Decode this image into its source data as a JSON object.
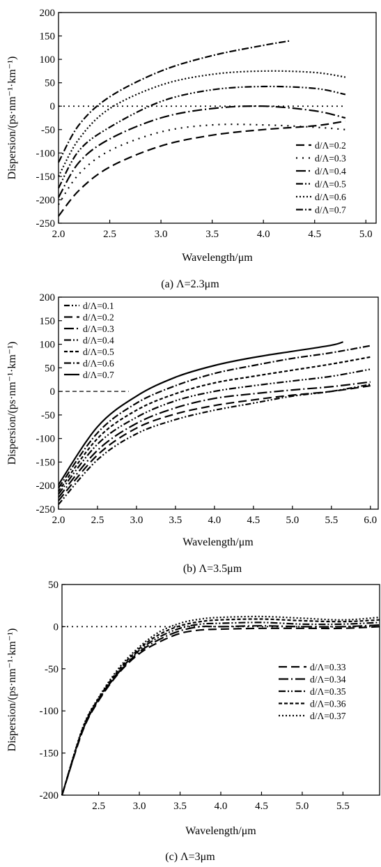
{
  "chart_data": [
    {
      "type": "line",
      "caption": "(a) Λ=2.3μm",
      "xlabel": "Wavelength/μm",
      "ylabel": "Dispersion/(ps·nm⁻¹·km⁻¹)",
      "xlim": [
        2.0,
        5.1
      ],
      "ylim": [
        -250,
        200
      ],
      "xticks": [
        "2.0",
        "2.5",
        "3.0",
        "3.5",
        "4.0",
        "4.5",
        "5.0"
      ],
      "yticks": [
        "200",
        "150",
        "100",
        "50",
        "0",
        "-50",
        "-100",
        "-150",
        "-200",
        "-250"
      ],
      "legend_position": "bottom-right",
      "reference_line": 0,
      "series": [
        {
          "name": "d/Λ=0.2",
          "dash": "12,6",
          "x": [
            2.0,
            2.2,
            2.5,
            3.0,
            3.5,
            4.0,
            4.5,
            4.8
          ],
          "y": [
            -235,
            -180,
            -130,
            -85,
            -62,
            -50,
            -42,
            -32
          ]
        },
        {
          "name": "d/Λ=0.3",
          "dash": "2,7",
          "x": [
            2.0,
            2.2,
            2.5,
            3.0,
            3.5,
            4.0,
            4.5,
            4.8
          ],
          "y": [
            -210,
            -145,
            -95,
            -55,
            -40,
            -40,
            -45,
            -50
          ]
        },
        {
          "name": "d/Λ=0.4",
          "dash": "14,4,2,4",
          "x": [
            2.0,
            2.2,
            2.5,
            3.0,
            3.5,
            4.0,
            4.5,
            4.8
          ],
          "y": [
            -195,
            -120,
            -70,
            -25,
            -5,
            0,
            -10,
            -25
          ]
        },
        {
          "name": "d/Λ=0.5",
          "dash": "10,3,2,3,2,3",
          "x": [
            2.0,
            2.2,
            2.5,
            3.0,
            3.5,
            4.0,
            4.5,
            4.8
          ],
          "y": [
            -175,
            -95,
            -45,
            10,
            35,
            42,
            38,
            25
          ]
        },
        {
          "name": "d/Λ=0.6",
          "dash": "2,3",
          "x": [
            2.0,
            2.2,
            2.5,
            3.0,
            3.5,
            4.0,
            4.5,
            4.8
          ],
          "y": [
            -150,
            -70,
            -5,
            45,
            68,
            75,
            72,
            62
          ]
        },
        {
          "name": "d/Λ=0.7",
          "dash": "10,3,2,3",
          "x": [
            2.0,
            2.2,
            2.5,
            3.0,
            3.5,
            4.0,
            4.27
          ],
          "y": [
            -120,
            -40,
            20,
            75,
            108,
            130,
            140
          ]
        }
      ]
    },
    {
      "type": "line",
      "caption": "(b) Λ=3.5μm",
      "xlabel": "Wavelength/μm",
      "ylabel": "Dispersion/(ps·nm⁻¹·km⁻¹)",
      "xlim": [
        2.0,
        6.1
      ],
      "ylim": [
        -250,
        200
      ],
      "xticks": [
        "2.0",
        "2.5",
        "3.0",
        "3.5",
        "4.0",
        "4.5",
        "5.0",
        "5.5",
        "6.0"
      ],
      "yticks": [
        "200",
        "150",
        "100",
        "50",
        "0",
        "-50",
        "-100",
        "-150",
        "-200",
        "-250"
      ],
      "legend_position": "top-left",
      "reference_line": 0,
      "series": [
        {
          "name": "d/Λ=0.1",
          "dash": "8,3,2,3,2,3",
          "x": [
            2.0,
            2.5,
            3.0,
            3.5,
            4.0,
            4.5,
            5.0,
            5.5,
            6.0
          ],
          "y": [
            -240,
            -145,
            -90,
            -60,
            -40,
            -25,
            -10,
            0,
            15
          ]
        },
        {
          "name": "d/Λ=0.2",
          "dash": "12,6",
          "x": [
            2.0,
            2.5,
            3.0,
            3.5,
            4.0,
            4.5,
            5.0,
            5.5,
            6.0
          ],
          "y": [
            -232,
            -135,
            -78,
            -48,
            -30,
            -18,
            -8,
            0,
            12
          ]
        },
        {
          "name": "d/Λ=0.3",
          "dash": "14,4,2,4",
          "x": [
            2.0,
            2.5,
            3.0,
            3.5,
            4.0,
            4.5,
            5.0,
            5.5,
            6.0
          ],
          "y": [
            -225,
            -125,
            -68,
            -35,
            -15,
            -5,
            3,
            10,
            20
          ]
        },
        {
          "name": "d/Λ=0.4",
          "dash": "10,3,2,3,2,3",
          "x": [
            2.0,
            2.5,
            3.0,
            3.5,
            4.0,
            4.5,
            5.0,
            5.5,
            6.0
          ],
          "y": [
            -218,
            -112,
            -55,
            -20,
            0,
            12,
            22,
            32,
            47
          ]
        },
        {
          "name": "d/Λ=0.5",
          "dash": "5,3",
          "x": [
            2.0,
            2.5,
            3.0,
            3.5,
            4.0,
            4.5,
            5.0,
            5.5,
            6.0
          ],
          "y": [
            -212,
            -100,
            -40,
            -5,
            18,
            32,
            45,
            58,
            73
          ]
        },
        {
          "name": "d/Λ=0.6",
          "dash": "10,3,2,3",
          "x": [
            2.0,
            2.5,
            3.0,
            3.5,
            4.0,
            4.5,
            5.0,
            5.5,
            6.0
          ],
          "y": [
            -205,
            -88,
            -25,
            12,
            38,
            55,
            70,
            82,
            97
          ]
        },
        {
          "name": "d/Λ=0.7",
          "dash": "",
          "x": [
            2.0,
            2.5,
            3.0,
            3.5,
            4.0,
            4.5,
            5.0,
            5.5,
            5.65
          ],
          "y": [
            -198,
            -75,
            -10,
            30,
            55,
            72,
            85,
            98,
            105
          ]
        }
      ]
    },
    {
      "type": "line",
      "caption": "(c) Λ=3μm",
      "xlabel": "Wavelength/μm",
      "ylabel": "Dispersion/(ps·nm⁻¹·km⁻¹)",
      "xlim": [
        2.05,
        5.95
      ],
      "ylim": [
        -200,
        50
      ],
      "xticks": [
        "2.5",
        "3.0",
        "3.5",
        "4.0",
        "4.5",
        "5.0",
        "5.5"
      ],
      "yticks": [
        "50",
        "0",
        "-50",
        "-100",
        "-150",
        "-200"
      ],
      "legend_position": "right",
      "reference_line": 0,
      "series": [
        {
          "name": "d/Λ=0.33",
          "dash": "12,6",
          "x": [
            2.05,
            2.3,
            2.5,
            2.75,
            3.0,
            3.25,
            3.5,
            3.75,
            4.0,
            4.5,
            5.0,
            5.5,
            5.95
          ],
          "y": [
            -200,
            -125,
            -88,
            -55,
            -32,
            -18,
            -8,
            -4,
            -3,
            -2,
            -2,
            -2,
            0
          ]
        },
        {
          "name": "d/Λ=0.34",
          "dash": "14,4,2,4",
          "x": [
            2.05,
            2.3,
            2.5,
            2.75,
            3.0,
            3.25,
            3.5,
            3.75,
            4.0,
            4.5,
            5.0,
            5.5,
            5.95
          ],
          "y": [
            -200,
            -124,
            -87,
            -54,
            -30,
            -15,
            -5,
            0,
            0,
            1,
            0,
            0,
            2
          ]
        },
        {
          "name": "d/Λ=0.35",
          "dash": "10,3,2,3,2,3",
          "x": [
            2.05,
            2.3,
            2.5,
            2.75,
            3.0,
            3.25,
            3.5,
            3.75,
            4.0,
            4.5,
            5.0,
            5.5,
            5.95
          ],
          "y": [
            -200,
            -123,
            -86,
            -53,
            -28,
            -12,
            -2,
            3,
            4,
            5,
            3,
            3,
            5
          ]
        },
        {
          "name": "d/Λ=0.36",
          "dash": "5,3",
          "x": [
            2.05,
            2.3,
            2.5,
            2.75,
            3.0,
            3.25,
            3.5,
            3.75,
            4.0,
            4.5,
            5.0,
            5.5,
            5.95
          ],
          "y": [
            -200,
            -122,
            -85,
            -51,
            -26,
            -9,
            1,
            6,
            8,
            9,
            7,
            6,
            8
          ]
        },
        {
          "name": "d/Λ=0.37",
          "dash": "2,3",
          "x": [
            2.05,
            2.3,
            2.5,
            2.75,
            3.0,
            3.25,
            3.5,
            3.75,
            4.0,
            4.5,
            5.0,
            5.5,
            5.95
          ],
          "y": [
            -200,
            -121,
            -84,
            -49,
            -24,
            -6,
            4,
            9,
            11,
            12,
            10,
            8,
            11
          ]
        }
      ]
    }
  ]
}
